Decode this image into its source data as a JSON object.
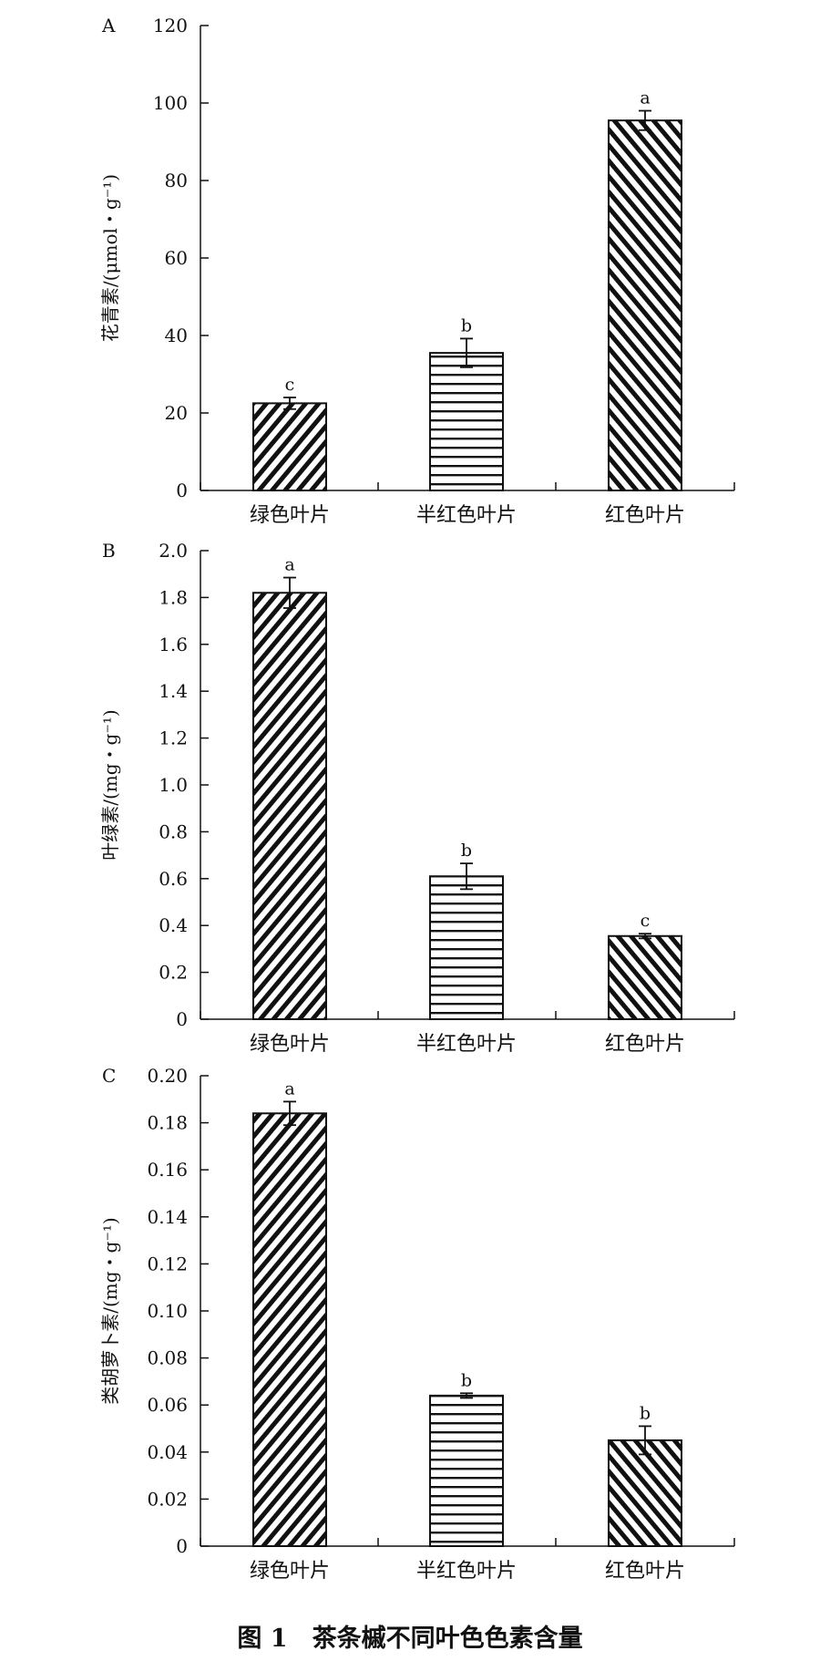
{
  "caption": "图 1　茶条槭不同叶色色素含量",
  "chart_data": [
    {
      "type": "bar",
      "panel": "A",
      "ylabel": "花青素/(μmol・g⁻¹)",
      "categories": [
        "绿色叶片",
        "半红色叶片",
        "红色叶片"
      ],
      "values": [
        22.5,
        35.5,
        95.5
      ],
      "errors": [
        1.5,
        3.7,
        2.5
      ],
      "significance": [
        "c",
        "b",
        "a"
      ],
      "patterns": [
        "diag-right",
        "horizontal",
        "diag-left"
      ],
      "ylim": [
        0,
        120
      ],
      "yticks": [
        0,
        20,
        40,
        60,
        80,
        100,
        120
      ],
      "ytick_labels": [
        "0",
        "20",
        "40",
        "60",
        "80",
        "100",
        "120"
      ]
    },
    {
      "type": "bar",
      "panel": "B",
      "ylabel": "叶绿素/(mg・g⁻¹)",
      "categories": [
        "绿色叶片",
        "半红色叶片",
        "红色叶片"
      ],
      "values": [
        1.82,
        0.61,
        0.355
      ],
      "errors": [
        0.065,
        0.055,
        0.01
      ],
      "significance": [
        "a",
        "b",
        "c"
      ],
      "patterns": [
        "diag-right",
        "horizontal",
        "diag-left"
      ],
      "ylim": [
        0,
        2.0
      ],
      "yticks": [
        0,
        0.2,
        0.4,
        0.6,
        0.8,
        1.0,
        1.2,
        1.4,
        1.6,
        1.8,
        2.0
      ],
      "ytick_labels": [
        "0",
        "0.2",
        "0.4",
        "0.6",
        "0.8",
        "1.0",
        "1.2",
        "1.4",
        "1.6",
        "1.8",
        "2.0"
      ]
    },
    {
      "type": "bar",
      "panel": "C",
      "ylabel": "类胡萝卜素/(mg・g⁻¹)",
      "categories": [
        "绿色叶片",
        "半红色叶片",
        "红色叶片"
      ],
      "values": [
        0.184,
        0.064,
        0.045
      ],
      "errors": [
        0.005,
        0.001,
        0.006
      ],
      "significance": [
        "a",
        "b",
        "b"
      ],
      "patterns": [
        "diag-right",
        "horizontal",
        "diag-left"
      ],
      "ylim": [
        0,
        0.2
      ],
      "yticks": [
        0,
        0.02,
        0.04,
        0.06,
        0.08,
        0.1,
        0.12,
        0.14,
        0.16,
        0.18,
        0.2
      ],
      "ytick_labels": [
        "0",
        "0.02",
        "0.04",
        "0.06",
        "0.08",
        "0.10",
        "0.12",
        "0.14",
        "0.16",
        "0.18",
        "0.20"
      ]
    }
  ]
}
